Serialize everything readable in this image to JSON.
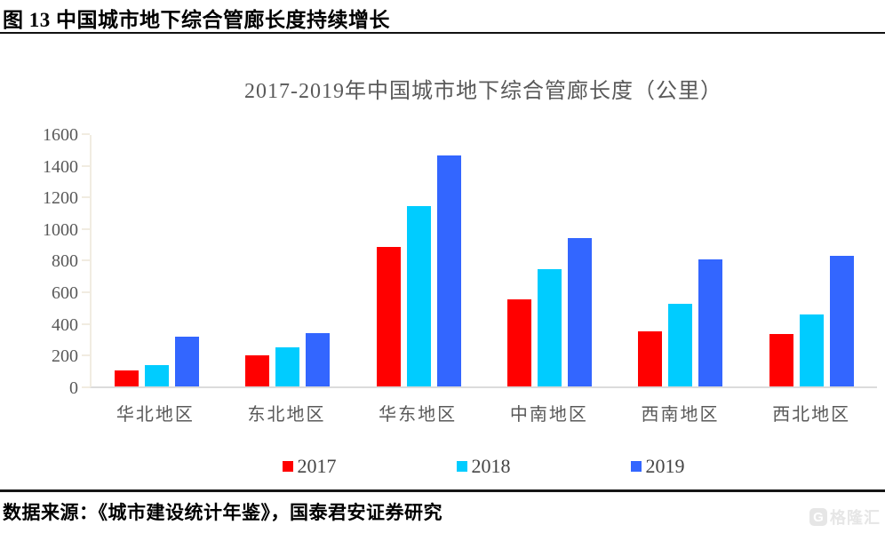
{
  "header": {
    "figure_title": "图 13  中国城市地下综合管廊长度持续增长"
  },
  "chart_data": {
    "type": "bar",
    "title": "2017-2019年中国城市地下综合管廊长度（公里）",
    "categories": [
      "华北地区",
      "东北地区",
      "华东地区",
      "中南地区",
      "西南地区",
      "西北地区"
    ],
    "series": [
      {
        "name": "2017",
        "color": "#ff0000",
        "values": [
          100,
          195,
          880,
          550,
          350,
          330
        ]
      },
      {
        "name": "2018",
        "color": "#00ccff",
        "values": [
          135,
          245,
          1140,
          740,
          520,
          455
        ]
      },
      {
        "name": "2019",
        "color": "#3366ff",
        "values": [
          315,
          335,
          1460,
          940,
          800,
          825
        ]
      }
    ],
    "ylim": [
      0,
      1600
    ],
    "ytick_step": 200,
    "grid": false,
    "legend_position": "bottom",
    "axis_colors": {
      "y_axis_line": "#f1ece1",
      "x_baseline": "#dcdcdc",
      "tick_label": "#595959"
    }
  },
  "footer": {
    "source_text": "数据来源：《城市建设统计年鉴》，国泰君安证券研究",
    "watermark_icon": "G",
    "watermark": "格隆汇"
  }
}
